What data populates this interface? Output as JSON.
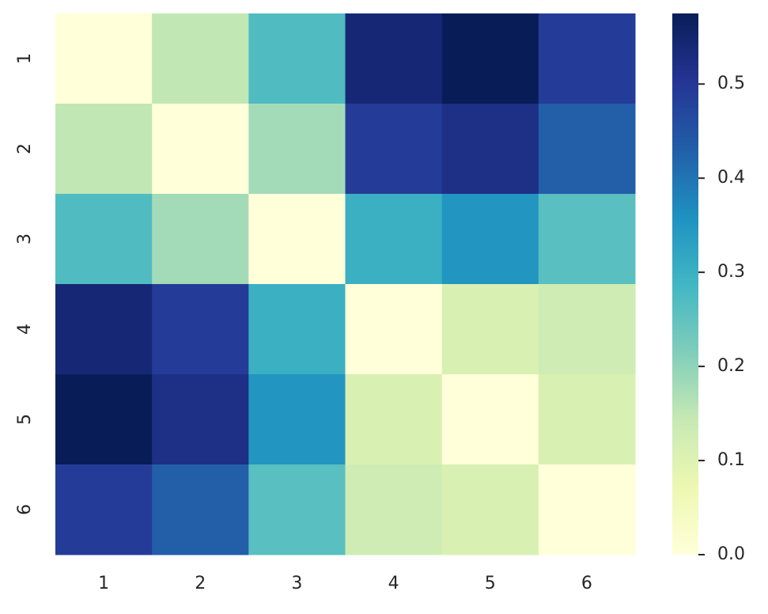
{
  "chart_data": {
    "type": "heatmap",
    "xcategories": [
      "1",
      "2",
      "3",
      "4",
      "5",
      "6"
    ],
    "ycategories": [
      "1",
      "2",
      "3",
      "4",
      "5",
      "6"
    ],
    "values": [
      [
        0,
        0.15,
        0.27,
        0.54,
        0.575,
        0.49
      ],
      [
        0.15,
        0,
        0.18,
        0.49,
        0.52,
        0.43
      ],
      [
        0.27,
        0.18,
        0,
        0.3,
        0.35,
        0.26
      ],
      [
        0.54,
        0.49,
        0.3,
        0,
        0.11,
        0.13
      ],
      [
        0.575,
        0.52,
        0.35,
        0.11,
        0,
        0.11
      ],
      [
        0.49,
        0.43,
        0.26,
        0.13,
        0.11,
        0
      ]
    ],
    "colormap": "YlGnBu",
    "zlim": [
      0,
      0.575
    ],
    "zticks": [
      {
        "value": 0,
        "label": "0.0"
      },
      0.1,
      0.2,
      0.3,
      0.4,
      0.5
    ]
  }
}
